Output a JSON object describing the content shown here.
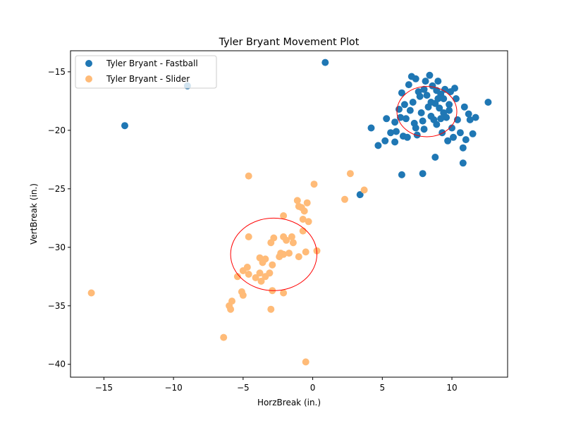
{
  "chart_data": {
    "type": "scatter",
    "title": "Tyler Bryant Movement Plot",
    "xlabel": "HorzBreak (in.)",
    "ylabel": "VertBreak (in.)",
    "xlim": [
      -17.4,
      14.0
    ],
    "ylim": [
      -41.1,
      -13.2
    ],
    "x_ticks": [
      -15,
      -10,
      -5,
      0,
      5,
      10
    ],
    "y_ticks": [
      -15,
      -20,
      -25,
      -30,
      -35,
      -40
    ],
    "x_tick_labels": [
      "−15",
      "−10",
      "−5",
      "0",
      "5",
      "10"
    ],
    "y_tick_labels": [
      "−15",
      "−20",
      "−25",
      "−30",
      "−35",
      "−40"
    ],
    "grid": false,
    "legend_position": "upper-left",
    "series": [
      {
        "name": "Tyler Bryant - Fastball",
        "color": "#1f77b4",
        "points": [
          [
            0.9,
            -14.2
          ],
          [
            -9.0,
            -16.2
          ],
          [
            -13.5,
            -19.6
          ],
          [
            3.4,
            -25.5
          ],
          [
            6.4,
            -23.8
          ],
          [
            7.9,
            -23.7
          ],
          [
            8.8,
            -22.3
          ],
          [
            10.8,
            -22.8
          ],
          [
            4.2,
            -19.8
          ],
          [
            4.7,
            -21.3
          ],
          [
            5.2,
            -20.9
          ],
          [
            5.3,
            -19.0
          ],
          [
            5.6,
            -20.2
          ],
          [
            5.9,
            -21.0
          ],
          [
            5.9,
            -19.3
          ],
          [
            6.2,
            -18.2
          ],
          [
            6.4,
            -16.8
          ],
          [
            6.5,
            -20.5
          ],
          [
            6.7,
            -19.0
          ],
          [
            6.9,
            -16.1
          ],
          [
            7.1,
            -15.4
          ],
          [
            7.2,
            -17.6
          ],
          [
            7.4,
            -15.6
          ],
          [
            7.5,
            -20.4
          ],
          [
            7.6,
            -16.7
          ],
          [
            7.8,
            -18.5
          ],
          [
            8.0,
            -19.9
          ],
          [
            8.1,
            -15.8
          ],
          [
            8.2,
            -17.0
          ],
          [
            8.4,
            -15.3
          ],
          [
            8.5,
            -18.8
          ],
          [
            8.6,
            -16.2
          ],
          [
            8.8,
            -17.7
          ],
          [
            8.9,
            -19.5
          ],
          [
            9.0,
            -15.8
          ],
          [
            9.1,
            -18.1
          ],
          [
            9.2,
            -16.9
          ],
          [
            9.3,
            -20.2
          ],
          [
            9.4,
            -17.3
          ],
          [
            9.5,
            -16.5
          ],
          [
            9.6,
            -18.9
          ],
          [
            9.7,
            -20.9
          ],
          [
            9.8,
            -17.8
          ],
          [
            9.9,
            -16.7
          ],
          [
            10.0,
            -19.8
          ],
          [
            10.1,
            -20.6
          ],
          [
            10.2,
            -16.4
          ],
          [
            10.4,
            -19.1
          ],
          [
            10.6,
            -20.2
          ],
          [
            10.8,
            -21.5
          ],
          [
            10.9,
            -18.0
          ],
          [
            11.0,
            -20.8
          ],
          [
            11.2,
            -18.6
          ],
          [
            11.3,
            -19.1
          ],
          [
            11.5,
            -20.3
          ],
          [
            11.7,
            -18.9
          ],
          [
            12.6,
            -17.6
          ],
          [
            6.3,
            -18.9
          ],
          [
            6.6,
            -17.8
          ],
          [
            7.0,
            -18.3
          ],
          [
            7.3,
            -19.4
          ],
          [
            7.7,
            -17.1
          ],
          [
            8.3,
            -18.0
          ],
          [
            8.7,
            -19.1
          ],
          [
            9.0,
            -17.3
          ],
          [
            9.4,
            -18.5
          ],
          [
            8.0,
            -16.5
          ],
          [
            7.4,
            -19.8
          ],
          [
            6.8,
            -20.6
          ],
          [
            8.5,
            -17.6
          ],
          [
            9.2,
            -19.0
          ],
          [
            9.8,
            -18.3
          ],
          [
            10.3,
            -17.3
          ],
          [
            6.0,
            -20.1
          ],
          [
            7.9,
            -19.2
          ],
          [
            8.9,
            -16.6
          ]
        ]
      },
      {
        "name": "Tyler Bryant - Slider",
        "color": "#ffbb78",
        "points": [
          [
            -15.9,
            -33.9
          ],
          [
            -6.4,
            -37.7
          ],
          [
            -0.5,
            -39.8
          ],
          [
            -4.6,
            -23.9
          ],
          [
            0.1,
            -24.6
          ],
          [
            2.7,
            -23.7
          ],
          [
            3.7,
            -25.1
          ],
          [
            2.3,
            -25.9
          ],
          [
            -1.1,
            -26.0
          ],
          [
            -1.0,
            -26.5
          ],
          [
            -0.8,
            -26.6
          ],
          [
            -0.6,
            -26.9
          ],
          [
            -0.4,
            -26.2
          ],
          [
            -2.1,
            -27.3
          ],
          [
            -0.7,
            -27.6
          ],
          [
            -0.3,
            -27.8
          ],
          [
            -0.7,
            -28.6
          ],
          [
            -4.6,
            -29.1
          ],
          [
            -2.8,
            -29.2
          ],
          [
            -2.1,
            -29.1
          ],
          [
            -1.5,
            -29.1
          ],
          [
            -1.4,
            -29.6
          ],
          [
            -3.0,
            -29.6
          ],
          [
            -3.8,
            -30.9
          ],
          [
            -3.4,
            -31.0
          ],
          [
            -2.3,
            -30.5
          ],
          [
            -2.1,
            -30.6
          ],
          [
            -1.7,
            -30.5
          ],
          [
            -1.0,
            -30.8
          ],
          [
            -0.5,
            -30.4
          ],
          [
            0.3,
            -30.3
          ],
          [
            -3.6,
            -31.3
          ],
          [
            -2.9,
            -31.5
          ],
          [
            -4.7,
            -31.7
          ],
          [
            -5.0,
            -32.0
          ],
          [
            -4.6,
            -32.3
          ],
          [
            -3.8,
            -32.2
          ],
          [
            -3.4,
            -32.5
          ],
          [
            -3.1,
            -32.2
          ],
          [
            -4.1,
            -32.6
          ],
          [
            -5.4,
            -32.5
          ],
          [
            -3.7,
            -32.9
          ],
          [
            -2.9,
            -33.7
          ],
          [
            -2.1,
            -33.9
          ],
          [
            -5.1,
            -33.8
          ],
          [
            -5.0,
            -34.1
          ],
          [
            -5.8,
            -34.6
          ],
          [
            -6.0,
            -35.0
          ],
          [
            -5.9,
            -35.3
          ],
          [
            -3.0,
            -35.3
          ],
          [
            -2.4,
            -30.8
          ],
          [
            -1.9,
            -29.4
          ]
        ]
      }
    ],
    "ellipses": [
      {
        "center": [
          8.2,
          -18.4
        ],
        "rx": 2.15,
        "ry": 2.15,
        "color": "#ff0000"
      },
      {
        "center": [
          -2.8,
          -30.6
        ],
        "rx": 3.1,
        "ry": 3.1,
        "color": "#ff0000"
      }
    ]
  }
}
